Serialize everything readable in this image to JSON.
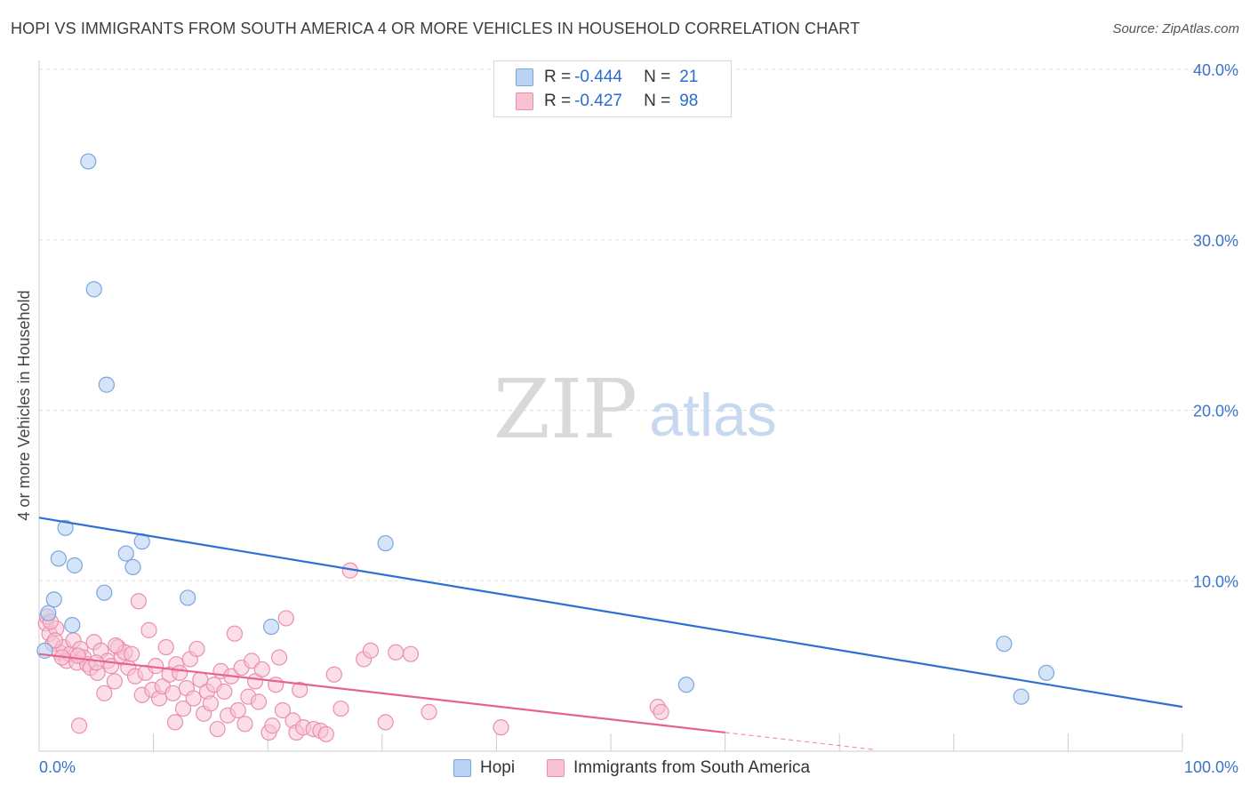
{
  "header": {
    "title": "HOPI VS IMMIGRANTS FROM SOUTH AMERICA 4 OR MORE VEHICLES IN HOUSEHOLD CORRELATION CHART",
    "source": "Source: ZipAtlas.com"
  },
  "watermark": {
    "zip": "ZIP",
    "atlas": "atlas"
  },
  "legend": {
    "hopi": {
      "r_label": "R =",
      "r_value": "-0.444",
      "n_label": "N =",
      "n_value": "21"
    },
    "immigrants": {
      "r_label": "R =",
      "r_value": "-0.427",
      "n_label": "N =",
      "n_value": "98"
    }
  },
  "bottom_legend": {
    "hopi": "Hopi",
    "immigrants": "Immigrants from South America"
  },
  "colors": {
    "hopi_fill": "#b9d3f2",
    "hopi_stroke": "#7aa6df",
    "hopi_line": "#2f6fd1",
    "imm_fill": "#f7c3d3",
    "imm_stroke": "#eb8fae",
    "imm_line": "#e8628f",
    "tick_text": "#3a73c8",
    "grid": "#dddddd"
  },
  "chart_data": {
    "type": "scatter",
    "title": "HOPI VS IMMIGRANTS FROM SOUTH AMERICA 4 OR MORE VEHICLES IN HOUSEHOLD CORRELATION CHART",
    "xlabel": "",
    "ylabel": "4 or more Vehicles in Household",
    "xlim": [
      0,
      100
    ],
    "ylim": [
      0,
      40
    ],
    "x_tick_labels": [
      "0.0%",
      "100.0%"
    ],
    "y_ticks": [
      10,
      20,
      30,
      40
    ],
    "y_tick_labels": [
      "10.0%",
      "20.0%",
      "30.0%",
      "40.0%"
    ],
    "grid": true,
    "series": [
      {
        "name": "Hopi",
        "points": [
          [
            4.3,
            34.6
          ],
          [
            4.8,
            27.1
          ],
          [
            5.9,
            21.5
          ],
          [
            2.3,
            13.1
          ],
          [
            9.0,
            12.3
          ],
          [
            7.6,
            11.6
          ],
          [
            1.7,
            11.3
          ],
          [
            3.1,
            10.9
          ],
          [
            8.2,
            10.8
          ],
          [
            30.3,
            12.2
          ],
          [
            5.7,
            9.3
          ],
          [
            1.3,
            8.9
          ],
          [
            13.0,
            9.0
          ],
          [
            0.8,
            8.1
          ],
          [
            2.9,
            7.4
          ],
          [
            20.3,
            7.3
          ],
          [
            0.5,
            5.9
          ],
          [
            84.4,
            6.3
          ],
          [
            56.6,
            3.9
          ],
          [
            88.1,
            4.6
          ],
          [
            85.9,
            3.2
          ]
        ],
        "trend": {
          "x": [
            0,
            100
          ],
          "y": [
            13.7,
            2.6
          ]
        }
      },
      {
        "name": "Immigrants from South America",
        "points": [
          [
            0.6,
            7.5
          ],
          [
            0.9,
            6.9
          ],
          [
            1.2,
            6.3
          ],
          [
            1.5,
            7.2
          ],
          [
            1.8,
            5.8
          ],
          [
            2.1,
            6.1
          ],
          [
            2.4,
            5.3
          ],
          [
            2.7,
            5.7
          ],
          [
            3.0,
            6.5
          ],
          [
            3.3,
            5.2
          ],
          [
            3.6,
            6.0
          ],
          [
            3.9,
            5.5
          ],
          [
            4.2,
            5.1
          ],
          [
            4.5,
            4.9
          ],
          [
            4.8,
            6.4
          ],
          [
            5.1,
            4.6
          ],
          [
            5.4,
            5.9
          ],
          [
            5.7,
            3.4
          ],
          [
            6.0,
            5.3
          ],
          [
            6.3,
            5.0
          ],
          [
            6.6,
            4.1
          ],
          [
            6.9,
            6.1
          ],
          [
            7.2,
            5.5
          ],
          [
            7.5,
            5.8
          ],
          [
            7.8,
            4.9
          ],
          [
            8.1,
            5.7
          ],
          [
            8.4,
            4.4
          ],
          [
            8.7,
            8.8
          ],
          [
            9.0,
            3.3
          ],
          [
            9.3,
            4.6
          ],
          [
            9.6,
            7.1
          ],
          [
            9.9,
            3.6
          ],
          [
            10.2,
            5.0
          ],
          [
            10.5,
            3.1
          ],
          [
            10.8,
            3.8
          ],
          [
            11.1,
            6.1
          ],
          [
            11.4,
            4.5
          ],
          [
            11.7,
            3.4
          ],
          [
            12.0,
            5.1
          ],
          [
            12.3,
            4.6
          ],
          [
            12.6,
            2.5
          ],
          [
            12.9,
            3.7
          ],
          [
            13.2,
            5.4
          ],
          [
            13.5,
            3.1
          ],
          [
            13.8,
            6.0
          ],
          [
            14.1,
            4.2
          ],
          [
            14.4,
            2.2
          ],
          [
            14.7,
            3.5
          ],
          [
            15.0,
            2.8
          ],
          [
            15.3,
            3.9
          ],
          [
            15.6,
            1.3
          ],
          [
            15.9,
            4.7
          ],
          [
            16.2,
            3.5
          ],
          [
            16.5,
            2.1
          ],
          [
            16.8,
            4.4
          ],
          [
            17.1,
            6.9
          ],
          [
            17.4,
            2.4
          ],
          [
            17.7,
            4.9
          ],
          [
            18.0,
            1.6
          ],
          [
            18.3,
            3.2
          ],
          [
            18.6,
            5.3
          ],
          [
            18.9,
            4.1
          ],
          [
            19.2,
            2.9
          ],
          [
            19.5,
            4.8
          ],
          [
            20.1,
            1.1
          ],
          [
            20.4,
            1.5
          ],
          [
            20.7,
            3.9
          ],
          [
            21.0,
            5.5
          ],
          [
            21.3,
            2.4
          ],
          [
            21.6,
            7.8
          ],
          [
            22.2,
            1.8
          ],
          [
            22.5,
            1.1
          ],
          [
            22.8,
            3.6
          ],
          [
            23.1,
            1.4
          ],
          [
            24.0,
            1.3
          ],
          [
            24.6,
            1.2
          ],
          [
            25.1,
            1.0
          ],
          [
            25.8,
            4.5
          ],
          [
            26.4,
            2.5
          ],
          [
            27.2,
            10.6
          ],
          [
            28.4,
            5.4
          ],
          [
            29.0,
            5.9
          ],
          [
            30.3,
            1.7
          ],
          [
            31.2,
            5.8
          ],
          [
            32.5,
            5.7
          ],
          [
            34.1,
            2.3
          ],
          [
            40.4,
            1.4
          ],
          [
            54.1,
            2.6
          ],
          [
            54.4,
            2.3
          ],
          [
            0.7,
            7.9
          ],
          [
            1.0,
            7.6
          ],
          [
            1.4,
            6.5
          ],
          [
            2.0,
            5.5
          ],
          [
            3.4,
            5.6
          ],
          [
            5.0,
            5.2
          ],
          [
            6.7,
            6.2
          ],
          [
            3.5,
            1.5
          ],
          [
            11.9,
            1.7
          ]
        ],
        "trend": {
          "x": [
            0,
            60
          ],
          "y": [
            5.7,
            1.1
          ]
        },
        "trend_dashed": {
          "x": [
            60,
            73
          ],
          "y": [
            1.1,
            0.1
          ]
        }
      }
    ]
  }
}
